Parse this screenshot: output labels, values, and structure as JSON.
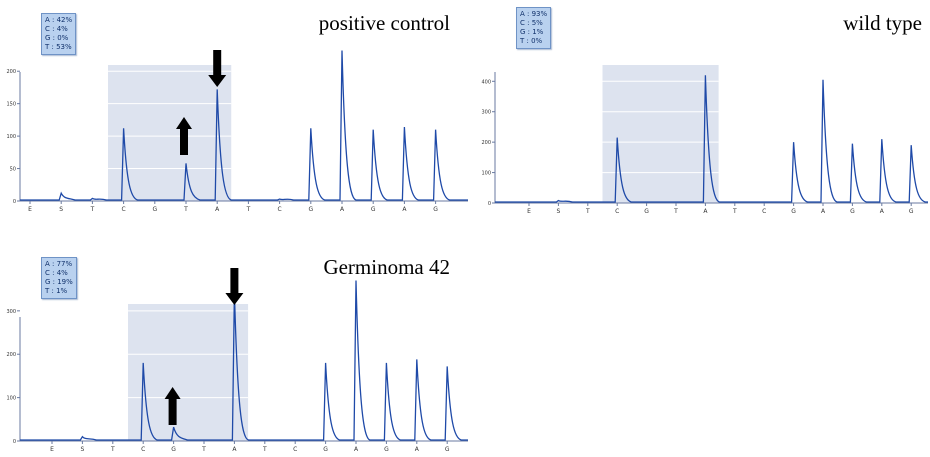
{
  "colors": {
    "trace": "#1f4aa8",
    "shade": "#dde3ef",
    "axis": "#6a7aa0",
    "badge_bg": "#b9d1ef",
    "arrow": "#000000"
  },
  "chart_data": [
    {
      "type": "line",
      "title": "positive control",
      "percentages": [
        "A : 42%",
        "C : 4%",
        "G : 0%",
        "T : 53%"
      ],
      "ylim": [
        0,
        225
      ],
      "yticks": [
        "0",
        "50",
        "100",
        "150",
        "200"
      ],
      "shaded_range": [
        3,
        6
      ],
      "arrows": [
        {
          "at": 6,
          "direction": "down"
        },
        {
          "at": 5,
          "direction": "up"
        }
      ],
      "series": [
        {
          "x": [
            "E",
            "S",
            "T",
            "C",
            "G",
            "T",
            "A",
            "T",
            "C",
            "G",
            "A",
            "G",
            "A",
            "G"
          ],
          "values": [
            0,
            12,
            4,
            112,
            0,
            58,
            172,
            0,
            3,
            112,
            232,
            110,
            114,
            110
          ]
        }
      ]
    },
    {
      "type": "line",
      "title": "wild type",
      "percentages": [
        "A : 93%",
        "C : 5%",
        "G : 1%",
        "T : 0%"
      ],
      "ylim": [
        0,
        470
      ],
      "yticks": [
        "0",
        "100",
        "200",
        "300",
        "400"
      ],
      "shaded_range": [
        3,
        6
      ],
      "arrows": [],
      "series": [
        {
          "x": [
            "E",
            "S",
            "T",
            "C",
            "G",
            "T",
            "A",
            "T",
            "C",
            "G",
            "A",
            "G",
            "A",
            "G"
          ],
          "values": [
            0,
            8,
            0,
            215,
            0,
            0,
            420,
            0,
            0,
            200,
            405,
            195,
            210,
            190
          ]
        }
      ]
    },
    {
      "type": "line",
      "title": "Germinoma 42",
      "percentages": [
        "A : 77%",
        "C : 4%",
        "G : 19%",
        "T : 1%"
      ],
      "ylim": [
        0,
        325
      ],
      "yticks": [
        "0",
        "100",
        "200",
        "300"
      ],
      "shaded_range": [
        3,
        6
      ],
      "arrows": [
        {
          "at": 6,
          "direction": "down"
        },
        {
          "at": 4,
          "direction": "up"
        }
      ],
      "series": [
        {
          "x": [
            "E",
            "S",
            "T",
            "C",
            "G",
            "T",
            "A",
            "T",
            "C",
            "G",
            "A",
            "G",
            "A",
            "G"
          ],
          "values": [
            0,
            10,
            0,
            180,
            32,
            0,
            345,
            0,
            0,
            180,
            370,
            180,
            188,
            172
          ]
        }
      ]
    }
  ]
}
